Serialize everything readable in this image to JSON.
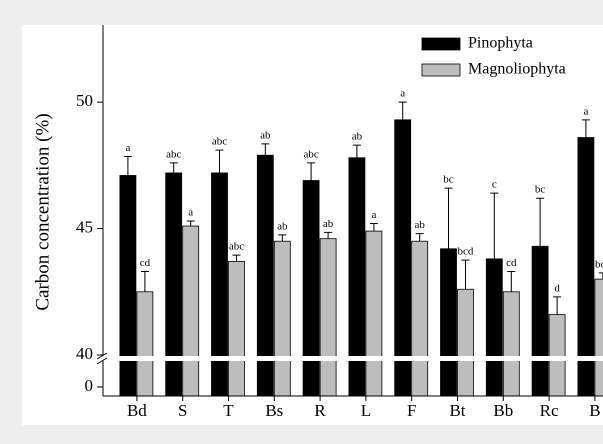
{
  "chart_data": {
    "type": "bar",
    "y_label": "Carbon concentration (%)",
    "categories": [
      "Bd",
      "S",
      "T",
      "Bs",
      "R",
      "L",
      "F",
      "Bt",
      "Bb",
      "Rc",
      "B"
    ],
    "series": [
      {
        "name": "Pinophyta",
        "color": "#000000",
        "values": [
          47.1,
          47.2,
          47.2,
          47.9,
          46.9,
          47.8,
          49.3,
          44.2,
          43.8,
          44.3,
          48.6
        ],
        "errors": [
          0.75,
          0.4,
          0.9,
          0.45,
          0.7,
          0.5,
          0.7,
          2.4,
          2.6,
          1.9,
          0.7
        ],
        "letters": [
          "a",
          "abc",
          "abc",
          "ab",
          "abc",
          "ab",
          "a",
          "bc",
          "c",
          "bc",
          "a"
        ]
      },
      {
        "name": "Magnoliophyta",
        "color": "#bdbdbd",
        "values": [
          42.5,
          45.1,
          43.7,
          44.5,
          44.6,
          44.9,
          44.5,
          42.6,
          42.5,
          41.6,
          43.0
        ],
        "errors": [
          0.8,
          0.2,
          0.25,
          0.25,
          0.25,
          0.3,
          0.3,
          1.15,
          0.8,
          0.7,
          0.25
        ],
        "letters": [
          "cd",
          "a",
          "abc",
          "ab",
          "ab",
          "a",
          "ab",
          "bcd",
          "cd",
          "d",
          "bcd"
        ]
      }
    ],
    "ylim": [
      40,
      53.05
    ],
    "yticks": [
      40,
      45,
      50
    ],
    "lower_yticks": [
      0
    ],
    "axis_break": true,
    "legend": "upper right"
  }
}
